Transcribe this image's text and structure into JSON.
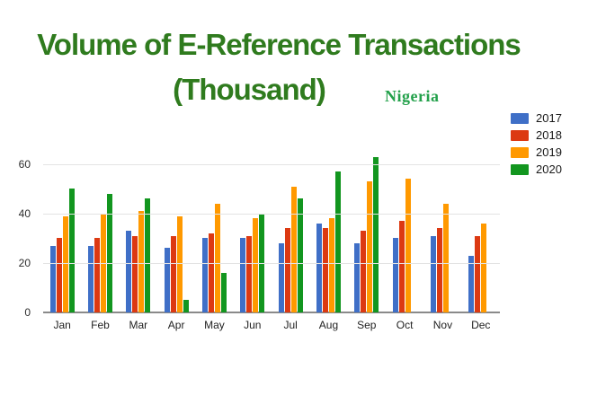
{
  "title": {
    "line1": "Volume of E-Reference Transactions",
    "line2": "(Thousand)",
    "region_label": "Nigeria"
  },
  "colors": {
    "title_green": "#2f7b1e",
    "region_green": "#23a14b",
    "gridline": "#e3e3e3",
    "axis_line": "#8a8a8a",
    "series": [
      "#3f6fc7",
      "#dc3912",
      "#ff9900",
      "#12961f"
    ]
  },
  "legend": {
    "position": "top-right",
    "items": [
      {
        "label": "2017",
        "color": "#3f6fc7"
      },
      {
        "label": "2018",
        "color": "#dc3912"
      },
      {
        "label": "2019",
        "color": "#ff9900"
      },
      {
        "label": "2020",
        "color": "#12961f"
      }
    ]
  },
  "chart_data": {
    "type": "bar",
    "title": "Volume of E-Reference Transactions (Thousand)",
    "subtitle": "Nigeria",
    "xlabel": "",
    "ylabel": "",
    "categories": [
      "Jan",
      "Feb",
      "Mar",
      "Apr",
      "May",
      "Jun",
      "Jul",
      "Aug",
      "Sep",
      "Oct",
      "Nov",
      "Dec"
    ],
    "series": [
      {
        "name": "2017",
        "color": "#3f6fc7",
        "values": [
          27,
          27,
          33,
          26,
          30,
          30,
          28,
          36,
          28,
          30,
          31,
          23
        ]
      },
      {
        "name": "2018",
        "color": "#dc3912",
        "values": [
          30,
          30,
          31,
          31,
          32,
          31,
          34,
          34,
          33,
          37,
          34,
          31
        ]
      },
      {
        "name": "2019",
        "color": "#ff9900",
        "values": [
          39,
          40,
          41,
          39,
          44,
          38,
          51,
          38,
          53,
          54,
          44,
          36
        ]
      },
      {
        "name": "2020",
        "color": "#12961f",
        "values": [
          50,
          48,
          46,
          5,
          16,
          40,
          46,
          57,
          63,
          0,
          0,
          0
        ]
      }
    ],
    "yticks": [
      0,
      20,
      40,
      60
    ],
    "ylim": [
      0,
      65
    ],
    "grid": true,
    "legend_position": "right"
  }
}
